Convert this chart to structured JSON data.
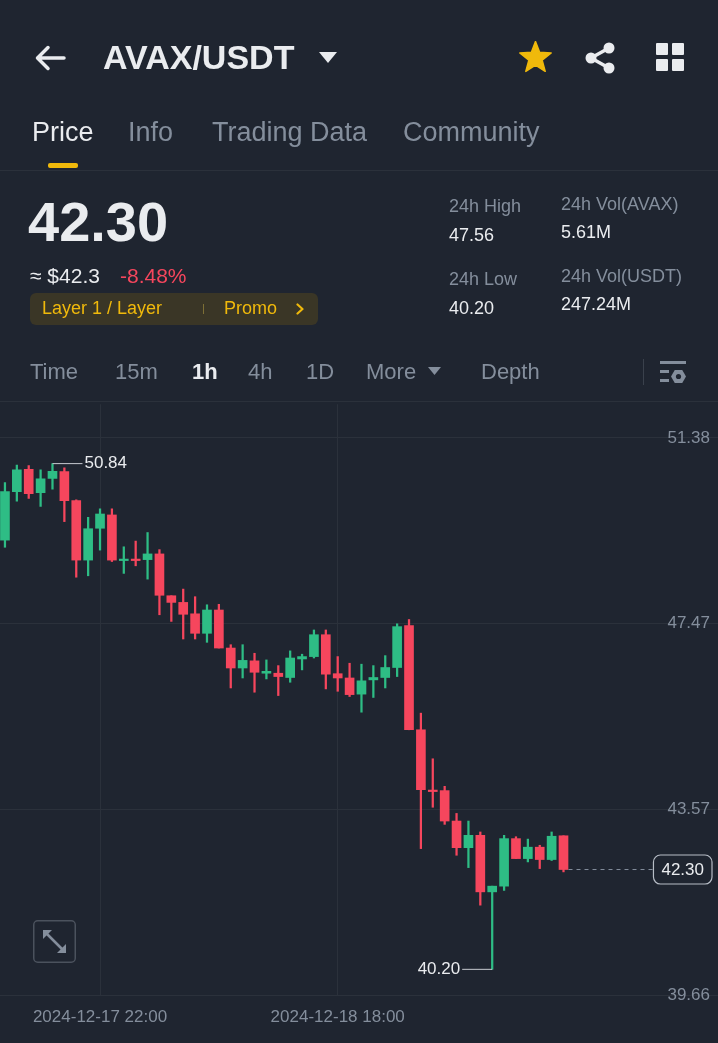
{
  "chart_data": {
    "type": "candlestick",
    "title": "AVAX/USDT",
    "annotations": [
      "Price",
      "Info",
      "Trading Data",
      "Community",
      "42.30",
      "≈ $42.3",
      "-8.48%",
      "Layer 1 / Layer",
      "Promo",
      "24h High",
      "47.56",
      "24h Low",
      "40.20",
      "24h Vol(AVAX)",
      "5.61M",
      "24h Vol(USDT)",
      "247.24M",
      "Time",
      "15m",
      "1h",
      "4h",
      "1D",
      "More",
      "Depth",
      {
        "text": "50.84",
        "x": "2024-12-17T18:00",
        "y": 50.84
      },
      {
        "text": "40.20",
        "x": "2024-12-19T07:00",
        "y": 40.2
      }
    ],
    "x": [
      "2024-12-17T14:00",
      "2024-12-17T15:00",
      "2024-12-17T16:00",
      "2024-12-17T17:00",
      "2024-12-17T18:00",
      "2024-12-17T19:00",
      "2024-12-17T20:00",
      "2024-12-17T21:00",
      "2024-12-17T22:00",
      "2024-12-17T23:00",
      "2024-12-18T00:00",
      "2024-12-18T01:00",
      "2024-12-18T02:00",
      "2024-12-18T03:00",
      "2024-12-18T04:00",
      "2024-12-18T05:00",
      "2024-12-18T06:00",
      "2024-12-18T07:00",
      "2024-12-18T08:00",
      "2024-12-18T09:00",
      "2024-12-18T10:00",
      "2024-12-18T11:00",
      "2024-12-18T12:00",
      "2024-12-18T13:00",
      "2024-12-18T14:00",
      "2024-12-18T15:00",
      "2024-12-18T16:00",
      "2024-12-18T17:00",
      "2024-12-18T18:00",
      "2024-12-18T19:00",
      "2024-12-18T20:00",
      "2024-12-18T21:00",
      "2024-12-18T22:00",
      "2024-12-18T23:00",
      "2024-12-19T00:00",
      "2024-12-19T01:00",
      "2024-12-19T02:00",
      "2024-12-19T03:00",
      "2024-12-19T04:00",
      "2024-12-19T05:00",
      "2024-12-19T06:00",
      "2024-12-19T07:00",
      "2024-12-19T08:00",
      "2024-12-19T09:00",
      "2024-12-19T10:00",
      "2024-12-19T11:00",
      "2024-12-19T12:00",
      "2024-12-19T13:00"
    ],
    "ohlc": [
      [
        49.23,
        50.44,
        49.08,
        50.25
      ],
      [
        50.25,
        50.81,
        50.05,
        50.71
      ],
      [
        50.72,
        50.8,
        50.11,
        50.21
      ],
      [
        50.23,
        50.71,
        49.94,
        50.52
      ],
      [
        50.53,
        50.84,
        50.3,
        50.68
      ],
      [
        50.67,
        50.75,
        49.62,
        50.06
      ],
      [
        50.06,
        50.08,
        48.45,
        48.81
      ],
      [
        48.81,
        49.71,
        48.48,
        49.47
      ],
      [
        49.48,
        49.89,
        49.02,
        49.78
      ],
      [
        49.76,
        49.89,
        48.78,
        48.81
      ],
      [
        48.8,
        49.09,
        48.53,
        48.83
      ],
      [
        48.83,
        49.21,
        48.69,
        48.8
      ],
      [
        48.82,
        49.39,
        48.41,
        48.94
      ],
      [
        48.94,
        49.03,
        47.66,
        48.07
      ],
      [
        48.06,
        48.06,
        47.52,
        47.92
      ],
      [
        47.92,
        48.2,
        47.15,
        47.67
      ],
      [
        47.68,
        48.04,
        47.15,
        47.27
      ],
      [
        47.27,
        47.87,
        47.08,
        47.76
      ],
      [
        47.76,
        47.88,
        46.96,
        46.96
      ],
      [
        46.96,
        47.03,
        46.12,
        46.54
      ],
      [
        46.54,
        47.03,
        46.33,
        46.7
      ],
      [
        46.69,
        46.85,
        46.03,
        46.45
      ],
      [
        46.43,
        46.71,
        46.31,
        46.47
      ],
      [
        46.43,
        46.59,
        45.96,
        46.36
      ],
      [
        46.34,
        46.9,
        46.24,
        46.75
      ],
      [
        46.73,
        46.83,
        46.5,
        46.78
      ],
      [
        46.78,
        47.34,
        46.75,
        47.24
      ],
      [
        47.24,
        47.34,
        46.1,
        46.41
      ],
      [
        46.42,
        46.78,
        46.05,
        46.33
      ],
      [
        46.33,
        46.64,
        45.94,
        45.98
      ],
      [
        45.99,
        46.62,
        45.61,
        46.27
      ],
      [
        46.29,
        46.59,
        45.92,
        46.34
      ],
      [
        46.34,
        46.8,
        46.12,
        46.55
      ],
      [
        46.55,
        47.47,
        46.36,
        47.41
      ],
      [
        47.43,
        47.56,
        45.24,
        45.24
      ],
      [
        45.24,
        45.59,
        42.74,
        43.98
      ],
      [
        43.97,
        44.63,
        43.61,
        43.94
      ],
      [
        43.96,
        44.05,
        43.25,
        43.32
      ],
      [
        43.32,
        43.48,
        42.6,
        42.76
      ],
      [
        42.76,
        43.32,
        42.34,
        43.02
      ],
      [
        43.02,
        43.09,
        41.55,
        41.83
      ],
      [
        41.83,
        41.95,
        40.2,
        41.95
      ],
      [
        41.95,
        43.02,
        41.86,
        42.95
      ],
      [
        42.95,
        42.99,
        42.53,
        42.53
      ],
      [
        42.53,
        42.94,
        42.46,
        42.77
      ],
      [
        42.77,
        42.81,
        42.32,
        42.51
      ],
      [
        42.51,
        43.09,
        42.49,
        43.0
      ],
      [
        43.01,
        43.01,
        42.25,
        42.3
      ]
    ],
    "colors": [
      "#2ebd85",
      "#2ebd85",
      "#f6465d",
      "#2ebd85",
      "#2ebd85",
      "#f6465d",
      "#f6465d",
      "#2ebd85",
      "#2ebd85",
      "#f6465d",
      "#2ebd85",
      "#f6465d",
      "#2ebd85",
      "#f6465d",
      "#f6465d",
      "#f6465d",
      "#f6465d",
      "#2ebd85",
      "#f6465d",
      "#f6465d",
      "#2ebd85",
      "#f6465d",
      "#2ebd85",
      "#f6465d",
      "#2ebd85",
      "#2ebd85",
      "#2ebd85",
      "#f6465d",
      "#f6465d",
      "#f6465d",
      "#2ebd85",
      "#2ebd85",
      "#2ebd85",
      "#2ebd85",
      "#f6465d",
      "#f6465d",
      "#f6465d",
      "#f6465d",
      "#f6465d",
      "#2ebd85",
      "#f6465d",
      "#2ebd85",
      "#2ebd85",
      "#f6465d",
      "#2ebd85",
      "#f6465d",
      "#2ebd85",
      "#f6465d"
    ],
    "xlim": [
      "2024-12-17T13:35",
      "2024-12-20T02:00"
    ],
    "xticks": [
      {
        "value": "2024-12-17T22:00",
        "label": "2024-12-17 22:00"
      },
      {
        "value": "2024-12-18T18:00",
        "label": "2024-12-18 18:00"
      }
    ],
    "ylim": [
      39.66,
      52.09
    ],
    "yticks": [
      39.66,
      43.57,
      47.47,
      51.38
    ],
    "grid": true,
    "ref_lines": [
      {
        "axis": "y",
        "value": 42.3,
        "label": "42.30",
        "line_style": "dashed",
        "color": "#848e9c"
      }
    ]
  }
}
